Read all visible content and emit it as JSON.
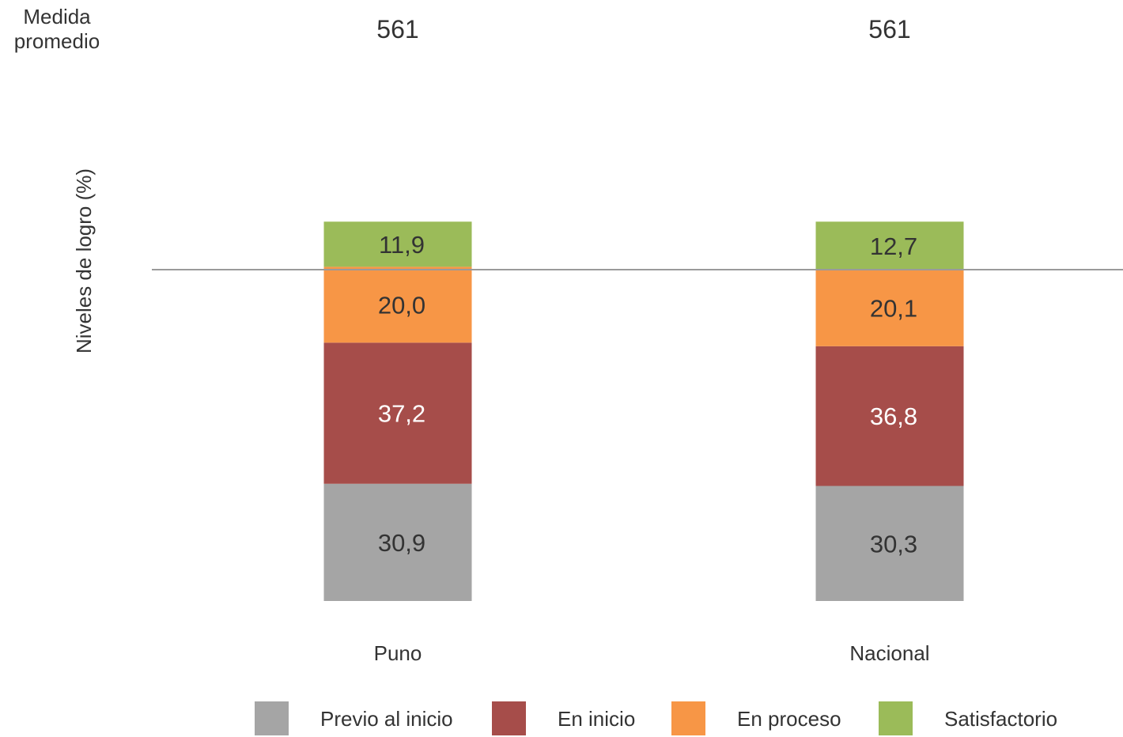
{
  "chart_data": {
    "type": "bar",
    "stacked": true,
    "title": "",
    "ylabel": "Niveles de logro (%)",
    "xlabel": "",
    "categories": [
      "Puno",
      "Nacional"
    ],
    "mean_score": {
      "label_line1": "Medida",
      "label_line2": "promedio",
      "values": [
        "561",
        "561"
      ]
    },
    "series": [
      {
        "name": "Previo al inicio",
        "color": "#a5a5a5",
        "values": [
          30.9,
          30.3
        ],
        "labels": [
          "30,9",
          "30,3"
        ],
        "label_color": "#333333"
      },
      {
        "name": "En inicio",
        "color": "#a64d4a",
        "values": [
          37.2,
          36.8
        ],
        "labels": [
          "37,2",
          "36,8"
        ],
        "label_color": "#ffffff"
      },
      {
        "name": "En proceso",
        "color": "#f79646",
        "values": [
          20.0,
          20.1
        ],
        "labels": [
          "20,0",
          "20,1"
        ],
        "label_color": "#333333"
      },
      {
        "name": "Satisfactorio",
        "color": "#9bbb59",
        "values": [
          11.9,
          12.7
        ],
        "labels": [
          "11,9",
          "12,7"
        ],
        "label_color": "#333333"
      }
    ],
    "legend_position": "bottom",
    "grid": false,
    "reference_line": "between En proceso and Satisfactorio"
  }
}
